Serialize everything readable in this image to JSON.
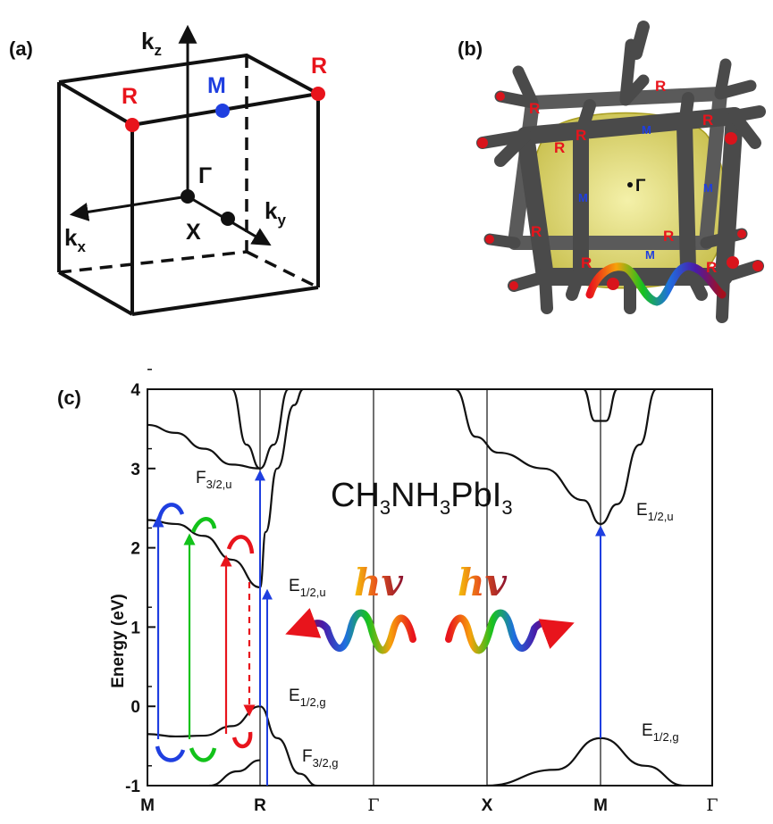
{
  "panels": {
    "a": {
      "label": "(a)",
      "axes": {
        "kz": "k",
        "kz_sub": "z",
        "kx": "k",
        "kx_sub": "x",
        "ky": "k",
        "ky_sub": "y"
      },
      "points": {
        "R_left": "R",
        "R_right": "R",
        "M": "M",
        "Gamma": "Γ",
        "X": "X"
      },
      "colors": {
        "R": "#e8141c",
        "M": "#1f3fe0",
        "Gamma": "#111111",
        "X": "#111111"
      }
    },
    "b": {
      "label": "(b)",
      "r_labels": [
        "R",
        "R",
        "R",
        "R",
        "R",
        "R",
        "R",
        "R",
        "R"
      ],
      "m_labels": [
        "M",
        "M",
        "M",
        "M"
      ],
      "gamma": "Γ",
      "colors": {
        "tube": "#4a4a4a",
        "surface": "#d8cf3a",
        "R": "#e8141c",
        "M": "#1f3fe0"
      }
    },
    "c": {
      "label": "(c)",
      "formula": {
        "p1": "CH",
        "s1": "3",
        "p2": "NH",
        "s2": "3",
        "p3": "PbI",
        "s3": "3"
      },
      "photon_labels": [
        "hv",
        "hv"
      ],
      "state_labels": [
        {
          "main": "F",
          "sub": "3/2,u"
        },
        {
          "main": "E",
          "sub": "1/2,u"
        },
        {
          "main": "E",
          "sub": "1/2,g"
        },
        {
          "main": "F",
          "sub": "3/2,g"
        },
        {
          "main": "E",
          "sub": "1/2,u"
        },
        {
          "main": "E",
          "sub": "1/2,g"
        }
      ]
    }
  },
  "chart_data": {
    "type": "line",
    "title": "CH3NH3PbI3",
    "xlabel": "",
    "ylabel": "Energy (eV)",
    "ylim": [
      -1,
      4
    ],
    "yticks": [
      "-1",
      "0",
      "1",
      "2",
      "3",
      "4"
    ],
    "xticks": [
      "M",
      "R",
      "Γ",
      "X",
      "M",
      "Γ"
    ],
    "colors": {
      "bands": "#111111",
      "transition": "#1f3fe0",
      "green": "#12c21a",
      "red": "#e8141c"
    },
    "series": [
      {
        "segment": "M-R",
        "points": [
          [
            0,
            3.55
          ],
          [
            0.25,
            3.45
          ],
          [
            0.5,
            3.25
          ],
          [
            0.75,
            3.05
          ],
          [
            1,
            3.0
          ]
        ]
      },
      {
        "segment": "M-R",
        "points": [
          [
            0,
            2.35
          ],
          [
            0.25,
            2.3
          ],
          [
            0.5,
            2.15
          ],
          [
            0.75,
            1.85
          ],
          [
            1,
            1.5
          ]
        ]
      },
      {
        "segment": "M-R",
        "points": [
          [
            0,
            -0.35
          ],
          [
            0.25,
            -0.38
          ],
          [
            0.5,
            -0.37
          ],
          [
            0.75,
            -0.25
          ],
          [
            1,
            0.0
          ]
        ]
      },
      {
        "segment": "M-R",
        "points": [
          [
            0.55,
            -1.0
          ],
          [
            0.8,
            -0.82
          ],
          [
            1,
            -0.68
          ]
        ]
      },
      {
        "segment": "R-Γ",
        "points": [
          [
            0.75,
            4.0
          ],
          [
            0.88,
            3.3
          ],
          [
            1,
            3.0
          ],
          [
            1.12,
            3.3
          ],
          [
            1.25,
            4.0
          ]
        ]
      },
      {
        "segment": "R-Γ",
        "points": [
          [
            1,
            1.5
          ],
          [
            1.05,
            2.2
          ],
          [
            1.15,
            3.0
          ],
          [
            1.3,
            3.8
          ],
          [
            1.38,
            4.0
          ]
        ]
      },
      {
        "segment": "R-Γ",
        "points": [
          [
            1,
            0.0
          ],
          [
            1.15,
            -0.4
          ],
          [
            1.35,
            -0.85
          ],
          [
            1.5,
            -1.0
          ]
        ]
      },
      {
        "segment": "X-M-Γ",
        "points": [
          [
            2.72,
            4.0
          ],
          [
            2.9,
            3.4
          ],
          [
            3.1,
            3.2
          ],
          [
            3.5,
            3.0
          ],
          [
            3.85,
            2.6
          ],
          [
            4,
            2.3
          ],
          [
            4.15,
            2.55
          ],
          [
            4.35,
            3.3
          ],
          [
            4.5,
            4.0
          ]
        ]
      },
      {
        "segment": "M",
        "points": [
          [
            3.85,
            4.0
          ],
          [
            3.95,
            3.6
          ],
          [
            4.05,
            3.6
          ],
          [
            4.15,
            4.0
          ]
        ]
      },
      {
        "segment": "X-M-Γ",
        "points": [
          [
            3.0,
            -1.0
          ],
          [
            3.6,
            -0.8
          ],
          [
            4,
            -0.4
          ],
          [
            4.4,
            -0.75
          ],
          [
            4.75,
            -1.0
          ]
        ]
      }
    ],
    "transitions": [
      {
        "k": 1.0,
        "from": 0.0,
        "to": 3.0,
        "label": "R"
      },
      {
        "k": 4.0,
        "from": -0.4,
        "to": 2.3,
        "label": "M"
      }
    ]
  }
}
